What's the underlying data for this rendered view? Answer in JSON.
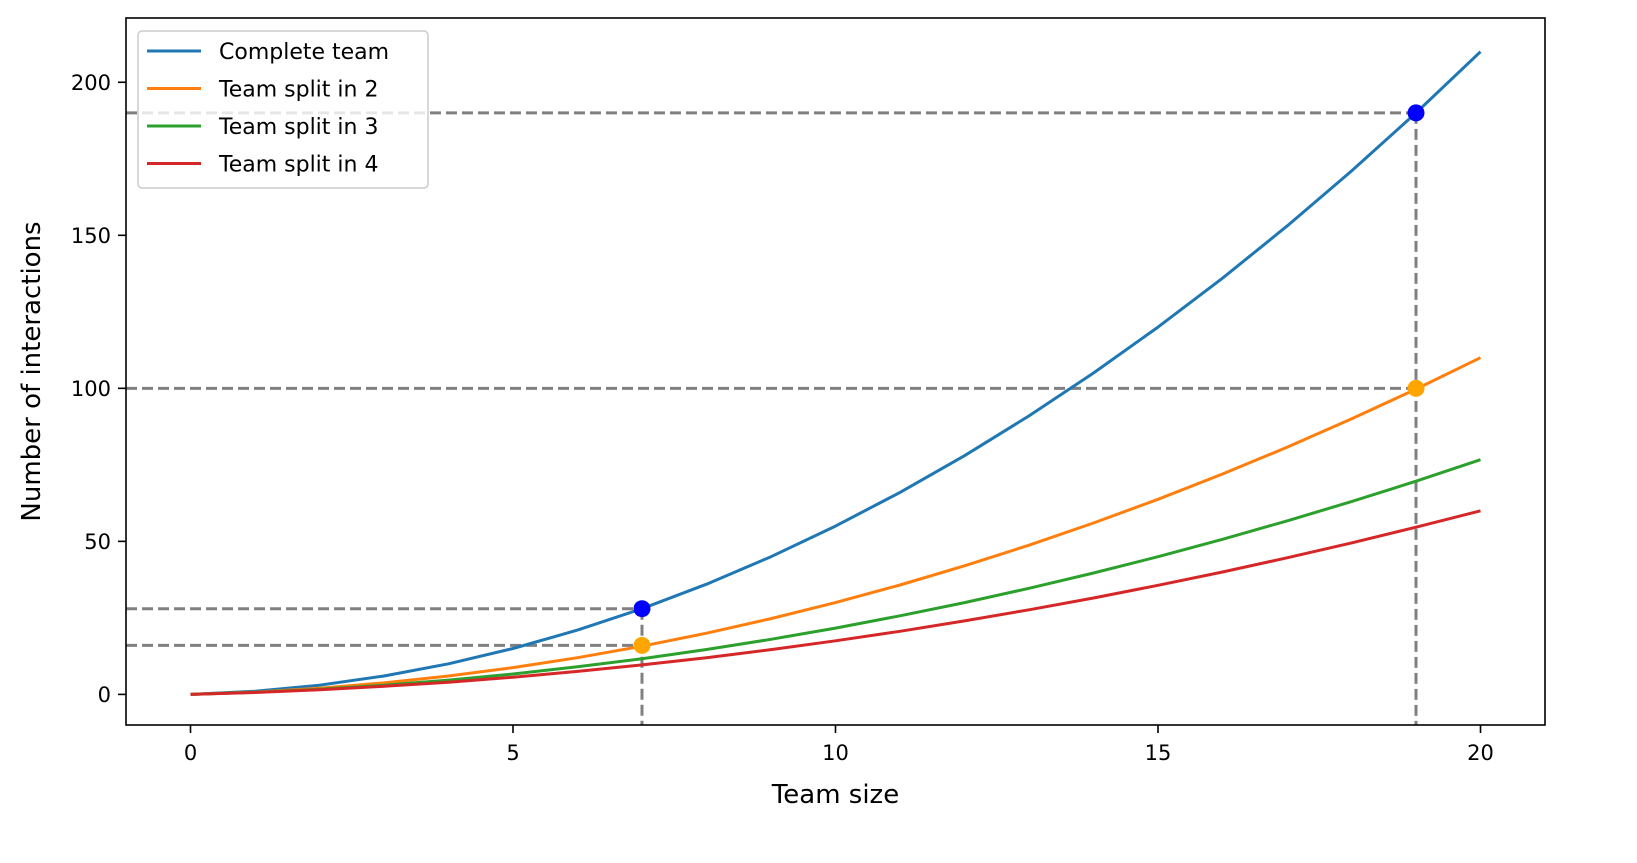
{
  "chart_data": {
    "type": "line",
    "xlabel": "Team size",
    "ylabel": "Number of interactions",
    "xlim": [
      -1,
      21
    ],
    "ylim": [
      -10,
      221
    ],
    "xticks": [
      0,
      5,
      10,
      15,
      20
    ],
    "yticks": [
      0,
      50,
      100,
      150,
      200
    ],
    "grid": false,
    "legend_placement": "upper-left",
    "x": [
      0,
      1,
      2,
      3,
      4,
      5,
      6,
      7,
      8,
      9,
      10,
      11,
      12,
      13,
      14,
      15,
      16,
      17,
      18,
      19,
      20
    ],
    "series": [
      {
        "name": "Complete team",
        "color": "#1f77b4",
        "values": [
          0,
          1,
          3,
          6,
          10,
          15,
          21,
          28,
          36,
          45,
          55,
          66,
          78,
          91,
          105,
          120,
          136,
          153,
          171,
          190,
          210
        ]
      },
      {
        "name": "Team split in 2",
        "color": "#ff7f0e",
        "values": [
          0,
          0.75,
          2,
          3.75,
          6,
          8.75,
          12,
          15.75,
          20,
          24.75,
          30,
          35.75,
          42,
          48.75,
          56,
          63.75,
          72,
          80.75,
          90,
          99.75,
          110
        ]
      },
      {
        "name": "Team split in 3",
        "color": "#2ca02c",
        "values": [
          0,
          0.67,
          1.67,
          3,
          4.67,
          6.67,
          9,
          11.67,
          14.67,
          18,
          21.67,
          25.67,
          30,
          34.67,
          39.67,
          45,
          50.67,
          56.67,
          63,
          69.67,
          76.67
        ]
      },
      {
        "name": "Team split in 4",
        "color": "#d62728",
        "values": [
          0,
          0.63,
          1.5,
          2.63,
          4,
          5.63,
          7.5,
          9.63,
          12,
          14.63,
          17.5,
          20.63,
          24,
          27.63,
          31.5,
          35.63,
          40,
          44.63,
          49.5,
          54.63,
          60
        ]
      }
    ],
    "markers": [
      {
        "x": 7,
        "y": 28,
        "color": "#0000ff"
      },
      {
        "x": 7,
        "y": 16,
        "color": "#ffa500"
      },
      {
        "x": 19,
        "y": 190,
        "color": "#0000ff"
      },
      {
        "x": 19,
        "y": 100,
        "color": "#ffa500"
      }
    ],
    "reference_lines": {
      "color": "#808080",
      "horizontal": [
        190,
        100,
        28,
        16
      ],
      "vertical": [
        {
          "x": 7,
          "y": 28
        },
        {
          "x": 19,
          "y": 190
        }
      ]
    }
  }
}
